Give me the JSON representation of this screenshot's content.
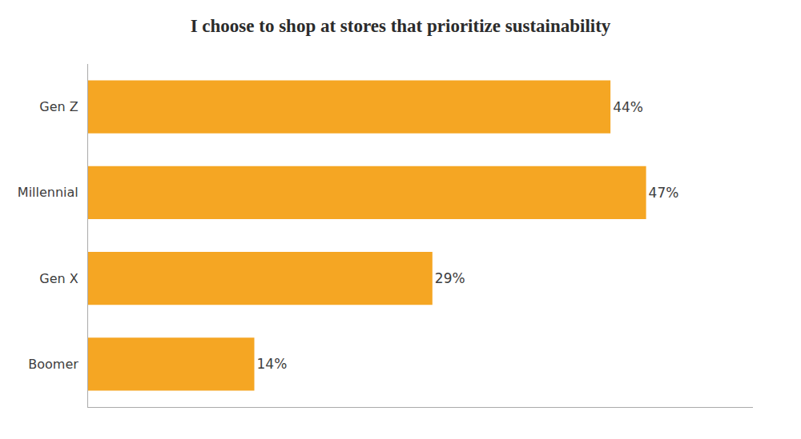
{
  "chart_data": {
    "type": "bar",
    "orientation": "horizontal",
    "title": "I choose to shop at stores that prioritize sustainability",
    "categories": [
      "Boomer",
      "Gen X",
      "Millennial",
      "Gen Z"
    ],
    "values": [
      14,
      29,
      47,
      44
    ],
    "value_labels": [
      "14%",
      "29%",
      "47%",
      "44%"
    ],
    "data_labels": true,
    "color": "#F5A623",
    "xlim": [
      0,
      56
    ],
    "tick_labels": "y",
    "grid": false
  }
}
